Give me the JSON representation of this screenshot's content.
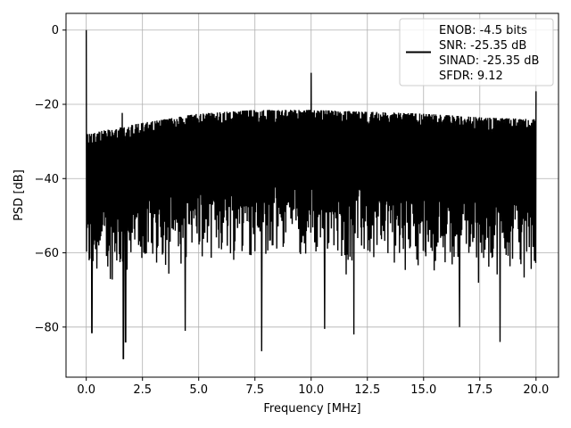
{
  "chart_data": {
    "type": "line",
    "title": "",
    "xlabel": "Frequency [MHz]",
    "ylabel": "PSD [dB]",
    "xlim": [
      -0.9,
      21.0
    ],
    "ylim": [
      -93.5,
      4.5
    ],
    "xticks": [
      0.0,
      2.5,
      5.0,
      7.5,
      10.0,
      12.5,
      15.0,
      17.5,
      20.0
    ],
    "xtick_labels": [
      "0.0",
      "2.5",
      "5.0",
      "7.5",
      "10.0",
      "12.5",
      "15.0",
      "17.5",
      "20.0"
    ],
    "yticks": [
      0,
      -20,
      -40,
      -60,
      -80
    ],
    "ytick_labels": [
      "0",
      "−20",
      "−40",
      "−60",
      "−80"
    ],
    "grid": true,
    "legend_position": "top-right",
    "series": [
      {
        "name": "ENOB: -4.5 bits\nSNR: -25.35 dB\nSINAD: -25.35 dB\nSFDR: 9.12",
        "color": "#000000",
        "frequency_range_mhz": [
          0.0,
          20.0
        ],
        "noise_floor_upper_db": [
          [
            0.0,
            -28
          ],
          [
            2.5,
            -25
          ],
          [
            5.0,
            -22.5
          ],
          [
            7.5,
            -21.5
          ],
          [
            10.0,
            -21.5
          ],
          [
            12.5,
            -22
          ],
          [
            15.0,
            -22.5
          ],
          [
            17.5,
            -23.5
          ],
          [
            20.0,
            -24
          ]
        ],
        "noise_floor_lower_db": [
          [
            0.0,
            -70
          ],
          [
            2.5,
            -66
          ],
          [
            5.0,
            -63
          ],
          [
            7.5,
            -62
          ],
          [
            10.0,
            -63
          ],
          [
            12.5,
            -64
          ],
          [
            15.0,
            -65
          ],
          [
            17.5,
            -66
          ],
          [
            20.0,
            -67
          ]
        ],
        "peaks": [
          [
            0.0,
            0.0
          ],
          [
            1.6,
            -22.3
          ],
          [
            10.0,
            -11.5
          ],
          [
            20.0,
            -16.5
          ]
        ],
        "dips": [
          [
            0.25,
            -81.5
          ],
          [
            1.65,
            -88.5
          ],
          [
            1.75,
            -84.0
          ],
          [
            4.4,
            -81.0
          ],
          [
            7.8,
            -86.5
          ],
          [
            10.6,
            -80.5
          ],
          [
            11.9,
            -82.0
          ],
          [
            16.6,
            -80.0
          ],
          [
            18.4,
            -84.0
          ]
        ]
      }
    ]
  },
  "legend": {
    "lines": [
      "ENOB: -4.5 bits",
      "SNR: -25.35 dB",
      "SINAD: -25.35 dB",
      "SFDR: 9.12"
    ]
  }
}
